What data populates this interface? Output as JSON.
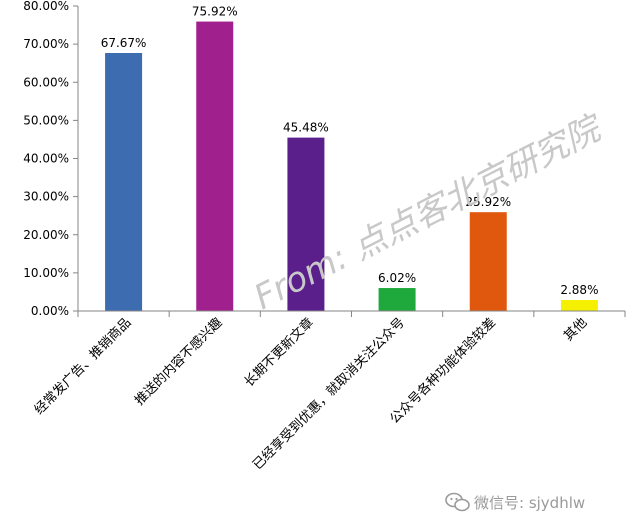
{
  "chart_data": {
    "type": "bar",
    "categories": [
      "经常发广告、推销商品",
      "推送的内容不感兴趣",
      "长期不更新文章",
      "已经享受到优惠，就取消关注公众号",
      "公众号各种功能体验较差",
      "其他"
    ],
    "values": [
      67.67,
      75.92,
      45.48,
      6.02,
      25.92,
      2.88
    ],
    "data_labels": [
      "67.67%",
      "75.92%",
      "45.48%",
      "6.02%",
      "25.92%",
      "2.88%"
    ],
    "colors": [
      "#3d6cb0",
      "#a0208e",
      "#5b1f8c",
      "#1fa83c",
      "#e0580e",
      "#f5f000"
    ],
    "ylim": [
      0,
      80
    ],
    "yticks": [
      "0.00%",
      "10.00%",
      "20.00%",
      "30.00%",
      "40.00%",
      "50.00%",
      "60.00%",
      "70.00%",
      "80.00%"
    ],
    "grid": false,
    "title": "",
    "xlabel": "",
    "ylabel": ""
  },
  "watermark": "From: 点点客北京研究院",
  "footer": {
    "icon": "wechat-icon",
    "text": "微信号: sjydhlw"
  }
}
